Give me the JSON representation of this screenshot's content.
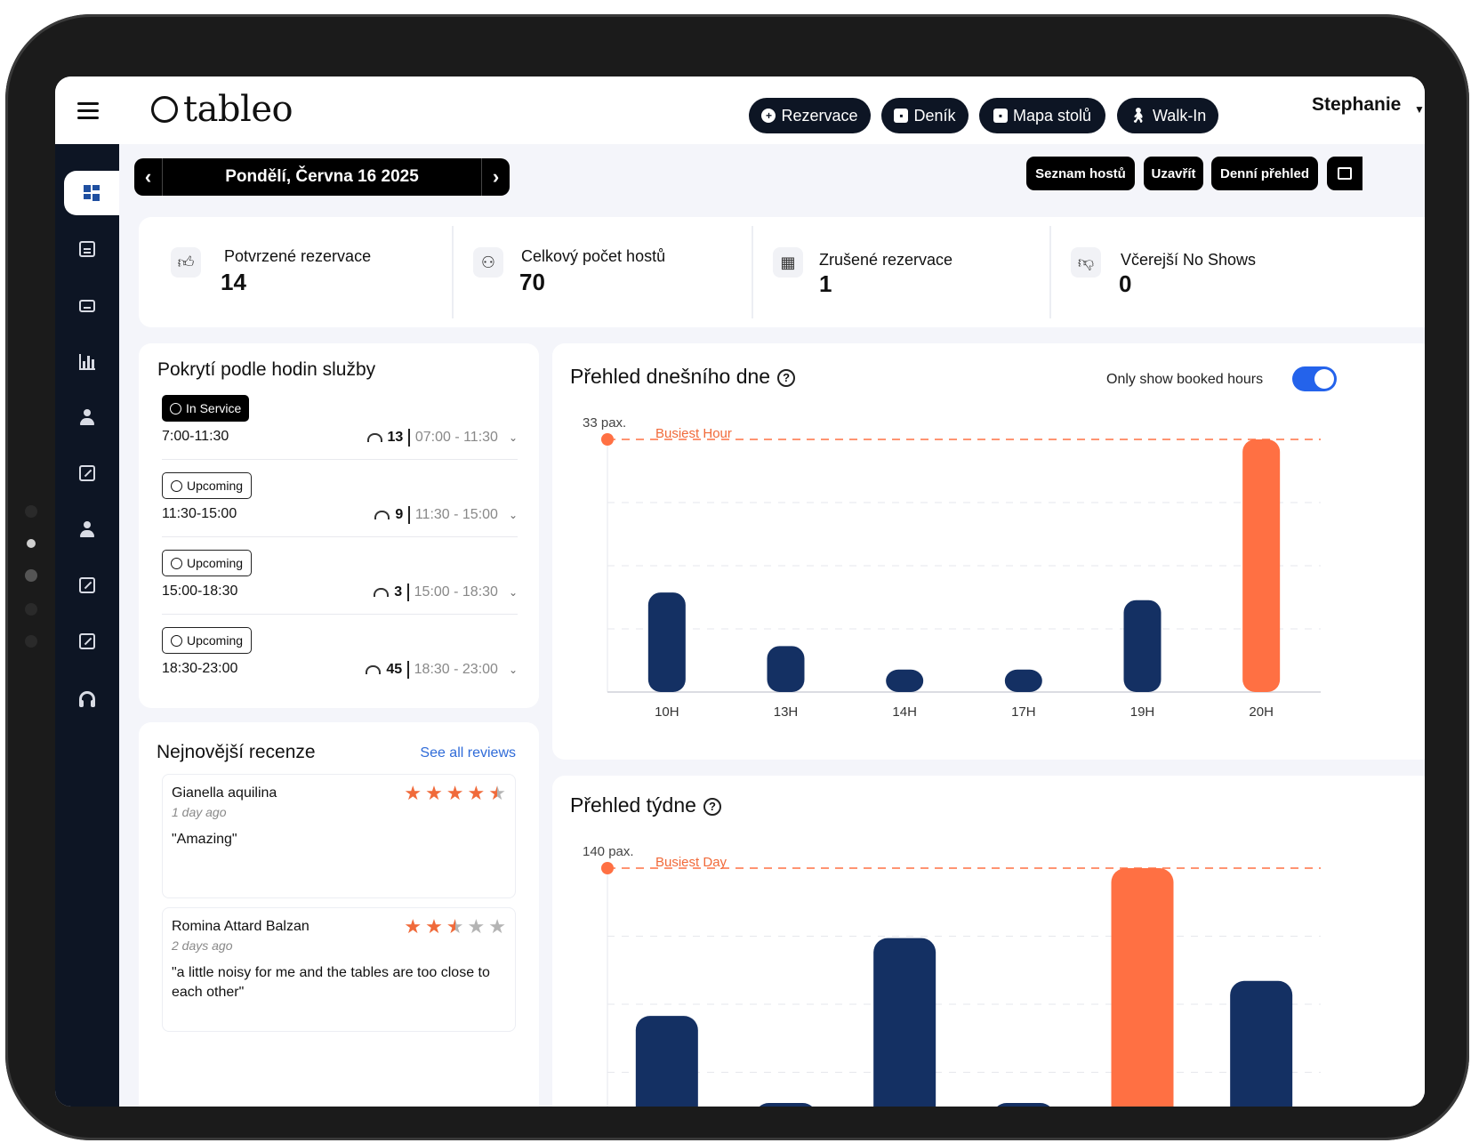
{
  "app": {
    "logo_text": "tableo"
  },
  "header": {
    "buttons": [
      {
        "label": "Rezervace",
        "icon": "plus-circle-icon"
      },
      {
        "label": "Deník",
        "icon": "calendar-icon"
      },
      {
        "label": "Mapa stolů",
        "icon": "calendar-icon"
      },
      {
        "label": "Walk-In",
        "icon": "walking-icon"
      }
    ],
    "user_name": "Stephanie"
  },
  "sidebar": {
    "items": [
      {
        "icon": "dashboard-icon",
        "active": true
      },
      {
        "icon": "calendar-icon"
      },
      {
        "icon": "table-icon"
      },
      {
        "icon": "bar-chart-icon"
      },
      {
        "icon": "user-icon"
      },
      {
        "icon": "edit-icon"
      },
      {
        "icon": "user-icon"
      },
      {
        "icon": "edit-icon"
      },
      {
        "icon": "edit-icon"
      },
      {
        "icon": "headset-icon"
      }
    ]
  },
  "date_nav": {
    "label": "Pondělí, Června 16 2025"
  },
  "actions": {
    "guest_list": "Seznam hostů",
    "close": "Uzavřít",
    "daily_overview": "Denní přehled"
  },
  "stats": [
    {
      "title": "Potvrzené rezervace",
      "value": "14",
      "icon": "thumbs-up-icon"
    },
    {
      "title": "Celkový počet hostů",
      "value": "70",
      "icon": "guests-icon"
    },
    {
      "title": "Zrušené rezervace",
      "value": "1",
      "icon": "calendar-cancel-icon"
    },
    {
      "title": "Včerejší No Shows",
      "value": "0",
      "icon": "thumbs-down-icon"
    }
  ],
  "service_coverage": {
    "title": "Pokrytí podle hodin služby",
    "slots": [
      {
        "status": "In Service",
        "time": "7:00-11:30",
        "count": "13",
        "range": "07:00 - 11:30"
      },
      {
        "status": "Upcoming",
        "time": "11:30-15:00",
        "count": "9",
        "range": "11:30 - 15:00"
      },
      {
        "status": "Upcoming",
        "time": "15:00-18:30",
        "count": "3",
        "range": "15:00 - 18:30"
      },
      {
        "status": "Upcoming",
        "time": "18:30-23:00",
        "count": "45",
        "range": "18:30 - 23:00"
      }
    ]
  },
  "reviews": {
    "title": "Nejnovější recenze",
    "see_all": "See all reviews",
    "items": [
      {
        "name": "Gianella aquilina",
        "ago": "1 day ago",
        "text": "\"Amazing\"",
        "rating": 4.5
      },
      {
        "name": "Romina Attard Balzan",
        "ago": "2 days ago",
        "text": "\"a little noisy for me and the tables are too close to each other\"",
        "rating": 2.5
      }
    ]
  },
  "today_overview": {
    "title": "Přehled dnešního dne",
    "toggle_label": "Only show booked hours",
    "toggle_on": true
  },
  "week_overview": {
    "title": "Přehled týdne"
  },
  "chart_data": [
    {
      "type": "bar",
      "categories": [
        "10H",
        "13H",
        "14H",
        "17H",
        "19H",
        "20H"
      ],
      "values": [
        13,
        6,
        2,
        2,
        12,
        33
      ],
      "highlight_index": 5,
      "max_label": "33 pax.",
      "annotation": "Busiest Hour",
      "ylim": [
        0,
        33
      ],
      "grid": true,
      "colors": {
        "bar": "#143063",
        "highlight": "#ff7043",
        "annotation": "#f06a3a"
      }
    },
    {
      "type": "bar",
      "values": [
        64,
        22,
        104,
        18,
        140,
        82
      ],
      "highlight_index": 4,
      "max_label": "140 pax.",
      "annotation": "Busiest Day",
      "ylim": [
        0,
        140
      ],
      "grid": true,
      "colors": {
        "bar": "#143063",
        "highlight": "#ff7043",
        "annotation": "#f06a3a"
      }
    }
  ]
}
